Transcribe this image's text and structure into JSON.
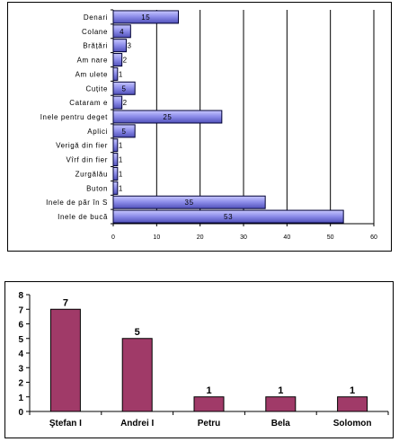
{
  "chart_data": [
    {
      "type": "bar",
      "orientation": "horizontal",
      "categories": [
        "Denari",
        "Colane",
        "Brățări",
        "Am nare",
        "Am ulete",
        "Cuțite",
        "Cataram e",
        "Inele pentru deget",
        "Aplici",
        "Verigă din fier",
        "Vîrf din fier",
        "Zurgălău",
        "Buton",
        "Inele de păr în S",
        "Inele de bucă"
      ],
      "values": [
        15,
        4,
        3,
        2,
        1,
        5,
        2,
        25,
        5,
        1,
        1,
        1,
        1,
        35,
        53
      ],
      "xlim": [
        0,
        60
      ],
      "xticks": [
        0,
        10,
        20,
        30,
        40,
        50,
        60
      ],
      "grid": true,
      "colors": {
        "bar": "#8a8ae8",
        "bar_highlight": "#c8c8ff",
        "bar_edge": "#000033"
      }
    },
    {
      "type": "bar",
      "categories": [
        "Ştefan I",
        "Andrei I",
        "Petru",
        "Bela",
        "Solomon"
      ],
      "values": [
        7,
        5,
        1,
        1,
        1
      ],
      "ylim": [
        0,
        8
      ],
      "yticks": [
        0,
        1,
        2,
        3,
        4,
        5,
        6,
        7,
        8
      ],
      "grid": false,
      "colors": {
        "bar": "#a03a68",
        "bar_edge": "#000000"
      }
    }
  ]
}
